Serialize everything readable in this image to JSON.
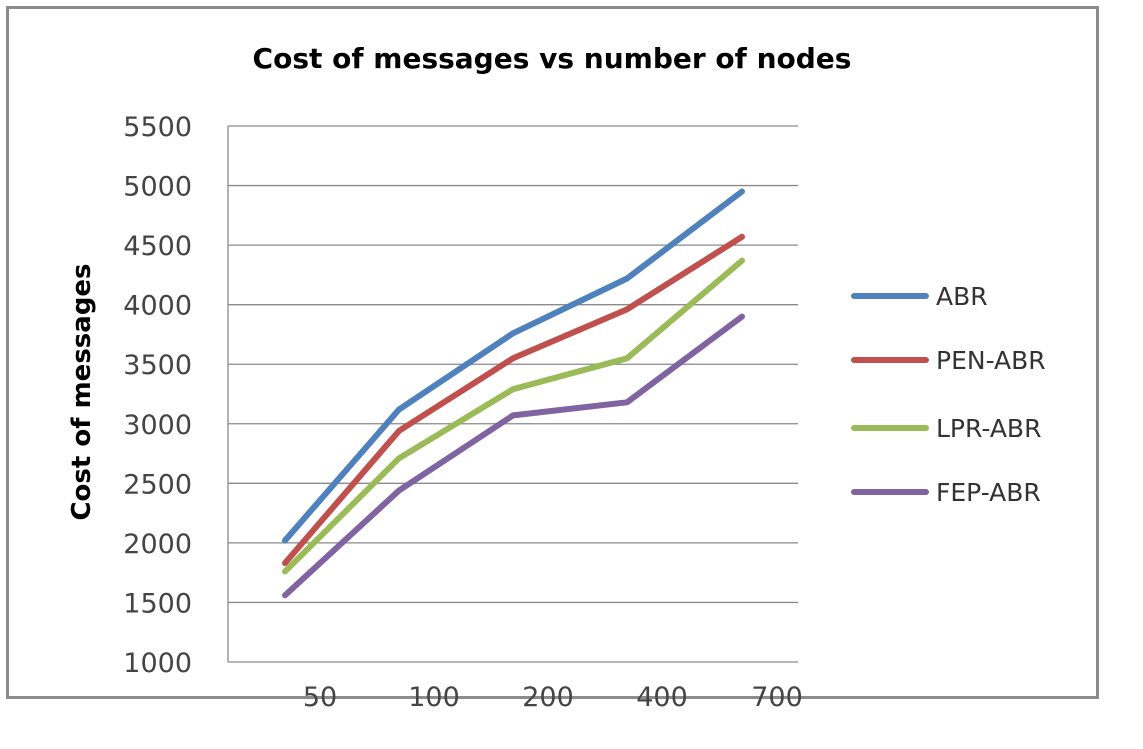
{
  "chart_data": {
    "type": "line",
    "title": "Cost of messages vs number of nodes",
    "xlabel": "",
    "ylabel": "Cost of messages",
    "categories": [
      "50",
      "100",
      "200",
      "400",
      "700"
    ],
    "yticks": [
      "1000",
      "1500",
      "2000",
      "2500",
      "3000",
      "3500",
      "4000",
      "4500",
      "5000",
      "5500"
    ],
    "ylim": [
      1000,
      5500
    ],
    "grid": true,
    "legend_position": "right",
    "series": [
      {
        "name": "ABR",
        "color": "#4f81bd",
        "values": [
          2020,
          3120,
          3760,
          4220,
          4950
        ]
      },
      {
        "name": "PEN-ABR",
        "color": "#c0504d",
        "values": [
          1830,
          2940,
          3550,
          3960,
          4570
        ]
      },
      {
        "name": "LPR-ABR",
        "color": "#9bbb59",
        "values": [
          1760,
          2710,
          3290,
          3550,
          4370
        ]
      },
      {
        "name": "FEP-ABR",
        "color": "#8064a2",
        "values": [
          1560,
          2440,
          3070,
          3180,
          3900
        ]
      }
    ]
  }
}
